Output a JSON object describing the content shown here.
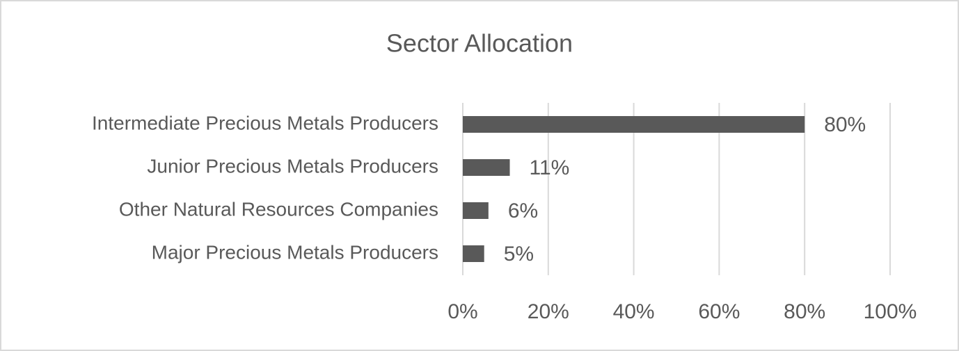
{
  "chart_data": {
    "type": "bar",
    "orientation": "horizontal",
    "title": "Sector Allocation",
    "categories": [
      "Intermediate Precious Metals Producers",
      "Junior Precious Metals Producers",
      "Other Natural Resources Companies",
      "Major Precious Metals Producers"
    ],
    "values": [
      80,
      11,
      6,
      5
    ],
    "value_labels": [
      "80%",
      "11%",
      "6%",
      "5%"
    ],
    "color": "#595959",
    "xlim": [
      0,
      100
    ],
    "xticks": [
      {
        "value": 0,
        "label": "0%"
      },
      {
        "value": 20,
        "label": "20%"
      },
      {
        "value": 40,
        "label": "40%"
      },
      {
        "value": 60,
        "label": "60%"
      },
      {
        "value": 80,
        "label": "80%"
      },
      {
        "value": 100,
        "label": "100%"
      }
    ],
    "grid": true
  }
}
